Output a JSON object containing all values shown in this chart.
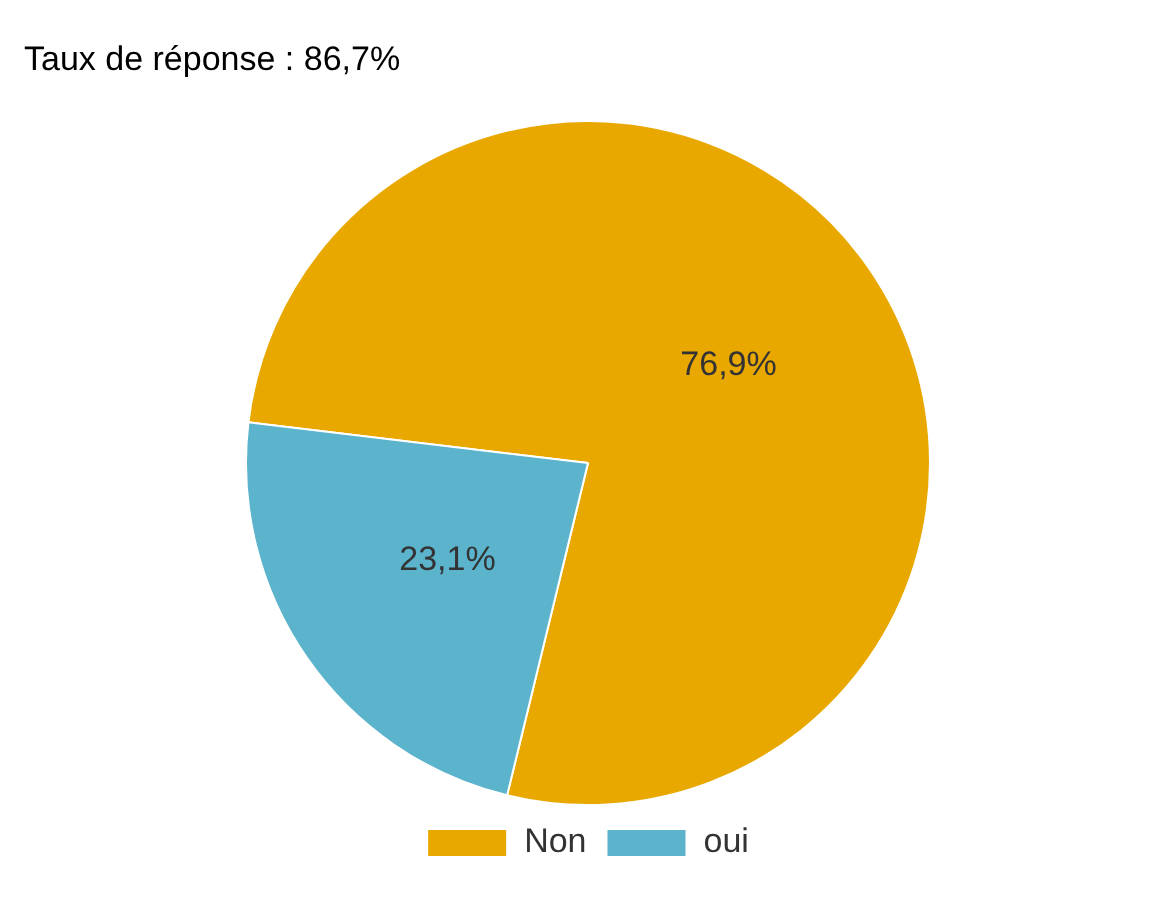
{
  "chart_data": {
    "type": "pie",
    "title": "Taux de réponse : 86,7%",
    "categories": [
      "Non",
      "oui"
    ],
    "values": [
      76.9,
      23.1
    ],
    "colors": [
      "#e8a800",
      "#5bb3cc"
    ],
    "value_labels": [
      "76,9%",
      "23,1%"
    ],
    "legend": "bottom"
  }
}
